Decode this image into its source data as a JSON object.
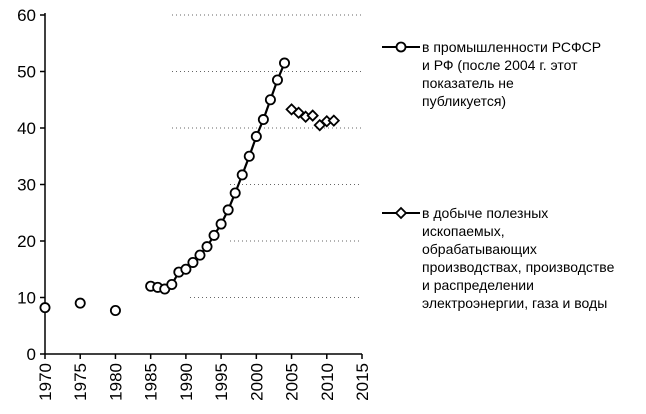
{
  "chart_data": {
    "type": "line",
    "xlim": [
      1970,
      2015
    ],
    "ylim": [
      0,
      60
    ],
    "x_ticks": [
      "1970",
      "1975",
      "1980",
      "1985",
      "1990",
      "1995",
      "2000",
      "2005",
      "2010",
      "2015"
    ],
    "y_ticks": [
      "0",
      "10",
      "20",
      "30",
      "40",
      "50",
      "60"
    ],
    "grid": "dotted horizontal, upper right",
    "legend_position": "right",
    "series": [
      {
        "name": "в промышленности РСФСР и РФ (после 2004 г. этот показатель не публикуется)",
        "marker": "circle",
        "color": "#000000",
        "points": [
          [
            1970,
            8.2
          ],
          [
            1975,
            9.0
          ],
          [
            1980,
            7.7
          ],
          [
            1985,
            12.0
          ],
          [
            1986,
            11.8
          ],
          [
            1987,
            11.5
          ],
          [
            1988,
            12.3
          ],
          [
            1989,
            14.5
          ],
          [
            1990,
            15.0
          ],
          [
            1991,
            16.2
          ],
          [
            1992,
            17.5
          ],
          [
            1993,
            19.0
          ],
          [
            1994,
            21.0
          ],
          [
            1995,
            23.0
          ],
          [
            1996,
            25.5
          ],
          [
            1997,
            28.5
          ],
          [
            1998,
            31.7
          ],
          [
            1999,
            35.0
          ],
          [
            2000,
            38.5
          ],
          [
            2001,
            41.5
          ],
          [
            2002,
            45.0
          ],
          [
            2003,
            48.5
          ],
          [
            2004,
            51.5
          ]
        ],
        "connected_from_year": 1988
      },
      {
        "name": "в добыче полезных ископаемых, обрабатывающих производствах, производстве и распределении электроэнергии, газа и воды",
        "marker": "diamond",
        "color": "#000000",
        "points": [
          [
            2005,
            43.3
          ],
          [
            2006,
            42.7
          ],
          [
            2007,
            42.0
          ],
          [
            2008,
            42.2
          ],
          [
            2009,
            40.5
          ],
          [
            2010,
            41.2
          ],
          [
            2011,
            41.3
          ]
        ],
        "connected": false
      }
    ]
  },
  "legend": {
    "series1_label_lines": [
      "в промышленности РСФСР",
      "и РФ (после 2004 г. этот",
      "показатель не",
      "публикуется)"
    ],
    "series2_label_lines": [
      "в добыче полезных",
      "ископаемых,",
      "обрабатывающих",
      "производствах, производстве",
      "и распределении",
      "электроэнергии, газа и воды"
    ]
  }
}
